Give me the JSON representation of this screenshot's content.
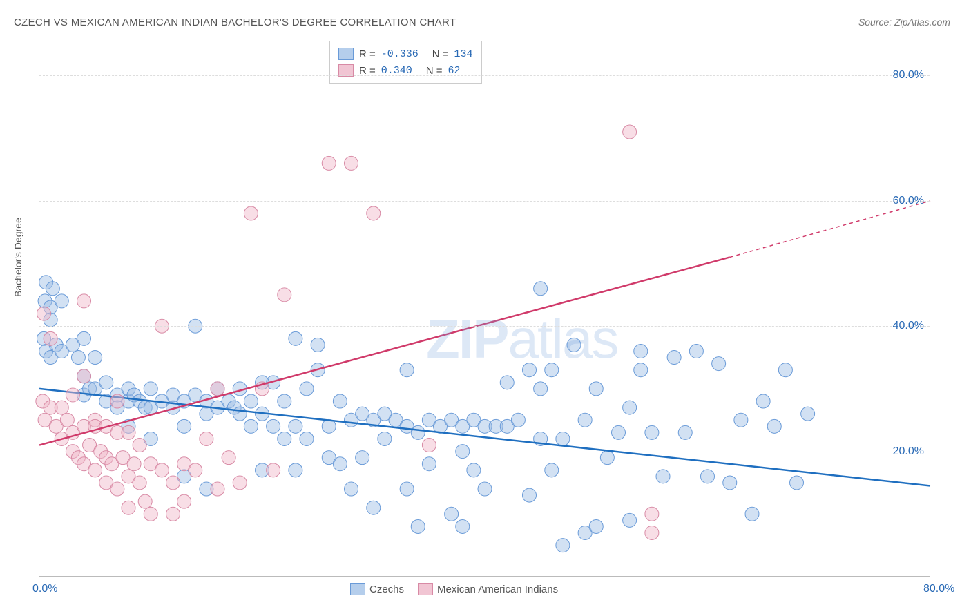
{
  "title": "CZECH VS MEXICAN AMERICAN INDIAN BACHELOR'S DEGREE CORRELATION CHART",
  "source": "Source: ZipAtlas.com",
  "ylabel": "Bachelor's Degree",
  "watermark_bold": "ZIP",
  "watermark_light": "atlas",
  "chart": {
    "type": "scatter-regression",
    "background_color": "#ffffff",
    "grid_color": "#dddddd",
    "axis_color": "#bbbbbb",
    "tick_color": "#2869b5",
    "tick_fontsize": 16,
    "title_color": "#555555",
    "title_fontsize": 15,
    "xlim": [
      0,
      80
    ],
    "ylim": [
      0,
      86
    ],
    "xticks": [
      {
        "v": 0,
        "l": "0.0%"
      },
      {
        "v": 80,
        "l": "80.0%"
      }
    ],
    "yticks": [
      {
        "v": 20,
        "l": "20.0%"
      },
      {
        "v": 40,
        "l": "40.0%"
      },
      {
        "v": 60,
        "l": "60.0%"
      },
      {
        "v": 80,
        "l": "80.0%"
      }
    ],
    "marker_radius": 10,
    "marker_opacity": 0.45,
    "series": [
      {
        "name": "Czechs",
        "color_fill": "#9bbce4",
        "color_stroke": "#6a9bd8",
        "line_color": "#1f6fc0",
        "line_width": 2.5,
        "regression": {
          "x1": 0,
          "y1": 30,
          "x2": 80,
          "y2": 14.5,
          "dash_after": 80
        },
        "R": "-0.336",
        "N": "134",
        "points": [
          [
            0.5,
            44
          ],
          [
            0.6,
            47
          ],
          [
            1,
            43
          ],
          [
            1,
            41
          ],
          [
            1.2,
            46
          ],
          [
            0.4,
            38
          ],
          [
            0.6,
            36
          ],
          [
            1,
            35
          ],
          [
            1.5,
            37
          ],
          [
            2,
            36
          ],
          [
            2,
            44
          ],
          [
            3,
            37
          ],
          [
            3.5,
            35
          ],
          [
            4,
            38
          ],
          [
            5,
            35
          ],
          [
            4,
            32
          ],
          [
            4,
            29
          ],
          [
            4.5,
            30
          ],
          [
            5,
            30
          ],
          [
            6,
            31
          ],
          [
            6,
            28
          ],
          [
            7,
            29
          ],
          [
            7,
            27
          ],
          [
            8,
            28
          ],
          [
            8,
            30
          ],
          [
            8.5,
            29
          ],
          [
            9,
            28
          ],
          [
            9.5,
            27
          ],
          [
            10,
            27
          ],
          [
            10,
            30
          ],
          [
            11,
            28
          ],
          [
            12,
            27
          ],
          [
            12,
            29
          ],
          [
            13,
            28
          ],
          [
            13,
            24
          ],
          [
            14,
            29
          ],
          [
            14,
            40
          ],
          [
            15,
            28
          ],
          [
            15,
            26
          ],
          [
            16,
            27
          ],
          [
            16,
            30
          ],
          [
            17,
            28
          ],
          [
            17.5,
            27
          ],
          [
            18,
            26
          ],
          [
            18,
            30
          ],
          [
            19,
            28
          ],
          [
            19,
            24
          ],
          [
            20,
            26
          ],
          [
            20,
            17
          ],
          [
            21,
            31
          ],
          [
            21,
            24
          ],
          [
            22,
            28
          ],
          [
            22,
            22
          ],
          [
            23,
            24
          ],
          [
            23,
            17
          ],
          [
            24,
            30
          ],
          [
            24,
            22
          ],
          [
            25,
            33
          ],
          [
            25,
            37
          ],
          [
            26,
            24
          ],
          [
            26,
            19
          ],
          [
            27,
            28
          ],
          [
            27,
            18
          ],
          [
            28,
            25
          ],
          [
            28,
            14
          ],
          [
            29,
            26
          ],
          [
            29,
            19
          ],
          [
            30,
            25
          ],
          [
            30,
            11
          ],
          [
            31,
            26
          ],
          [
            31,
            22
          ],
          [
            32,
            25
          ],
          [
            33,
            24
          ],
          [
            33,
            14
          ],
          [
            34,
            23
          ],
          [
            34,
            8
          ],
          [
            35,
            25
          ],
          [
            35,
            18
          ],
          [
            36,
            24
          ],
          [
            37,
            25
          ],
          [
            37,
            10
          ],
          [
            38,
            24
          ],
          [
            38,
            8
          ],
          [
            39,
            25
          ],
          [
            40,
            24
          ],
          [
            40,
            14
          ],
          [
            41,
            24
          ],
          [
            42,
            24
          ],
          [
            42,
            31
          ],
          [
            43,
            25
          ],
          [
            44,
            33
          ],
          [
            44,
            13
          ],
          [
            45,
            46
          ],
          [
            45,
            22
          ],
          [
            46,
            33
          ],
          [
            46,
            17
          ],
          [
            47,
            22
          ],
          [
            48,
            37
          ],
          [
            49,
            25
          ],
          [
            49,
            7
          ],
          [
            50,
            30
          ],
          [
            51,
            19
          ],
          [
            52,
            23
          ],
          [
            53,
            27
          ],
          [
            54,
            36
          ],
          [
            55,
            23
          ],
          [
            56,
            16
          ],
          [
            57,
            35
          ],
          [
            58,
            23
          ],
          [
            59,
            36
          ],
          [
            60,
            16
          ],
          [
            61,
            34
          ],
          [
            62,
            15
          ],
          [
            63,
            25
          ],
          [
            64,
            10
          ],
          [
            65,
            28
          ],
          [
            66,
            24
          ],
          [
            67,
            33
          ],
          [
            68,
            15
          ],
          [
            69,
            26
          ],
          [
            50,
            8
          ],
          [
            53,
            9
          ],
          [
            54,
            33
          ],
          [
            45,
            30
          ],
          [
            47,
            5
          ],
          [
            33,
            33
          ],
          [
            39,
            17
          ],
          [
            13,
            16
          ],
          [
            15,
            14
          ],
          [
            20,
            31
          ],
          [
            8,
            24
          ],
          [
            10,
            22
          ],
          [
            23,
            38
          ],
          [
            38,
            20
          ]
        ]
      },
      {
        "name": "Mexican American Indians",
        "color_fill": "#f0b6c8",
        "color_stroke": "#d88aa5",
        "line_color": "#d03a6a",
        "line_width": 2.5,
        "regression": {
          "x1": 0,
          "y1": 21,
          "x2": 62,
          "y2": 51,
          "dash_after": 62,
          "x3": 80,
          "y3": 60
        },
        "R": " 0.340",
        "N": " 62",
        "points": [
          [
            0.3,
            28
          ],
          [
            0.5,
            25
          ],
          [
            0.4,
            42
          ],
          [
            1,
            38
          ],
          [
            1,
            27
          ],
          [
            1.5,
            24
          ],
          [
            2,
            27
          ],
          [
            2,
            22
          ],
          [
            2.5,
            25
          ],
          [
            3,
            23
          ],
          [
            3,
            29
          ],
          [
            3,
            20
          ],
          [
            3.5,
            19
          ],
          [
            4,
            32
          ],
          [
            4,
            24
          ],
          [
            4,
            18
          ],
          [
            4.5,
            21
          ],
          [
            5,
            25
          ],
          [
            5,
            24
          ],
          [
            5,
            17
          ],
          [
            5.5,
            20
          ],
          [
            6,
            24
          ],
          [
            6,
            19
          ],
          [
            6,
            15
          ],
          [
            6.5,
            18
          ],
          [
            7,
            28
          ],
          [
            7,
            23
          ],
          [
            7,
            14
          ],
          [
            7.5,
            19
          ],
          [
            8,
            23
          ],
          [
            8,
            16
          ],
          [
            8,
            11
          ],
          [
            8.5,
            18
          ],
          [
            9,
            21
          ],
          [
            9,
            15
          ],
          [
            9.5,
            12
          ],
          [
            10,
            18
          ],
          [
            10,
            10
          ],
          [
            11,
            40
          ],
          [
            11,
            17
          ],
          [
            12,
            15
          ],
          [
            12,
            10
          ],
          [
            13,
            18
          ],
          [
            13,
            12
          ],
          [
            14,
            17
          ],
          [
            15,
            22
          ],
          [
            16,
            30
          ],
          [
            16,
            14
          ],
          [
            17,
            19
          ],
          [
            18,
            15
          ],
          [
            19,
            58
          ],
          [
            20,
            30
          ],
          [
            21,
            17
          ],
          [
            22,
            45
          ],
          [
            26,
            66
          ],
          [
            28,
            66
          ],
          [
            30,
            58
          ],
          [
            35,
            21
          ],
          [
            53,
            71
          ],
          [
            55,
            10
          ],
          [
            55,
            7
          ],
          [
            4,
            44
          ]
        ]
      }
    ],
    "legend_bottom": [
      {
        "label": "Czechs",
        "swatch": "blue"
      },
      {
        "label": "Mexican American Indians",
        "swatch": "pink"
      }
    ]
  }
}
